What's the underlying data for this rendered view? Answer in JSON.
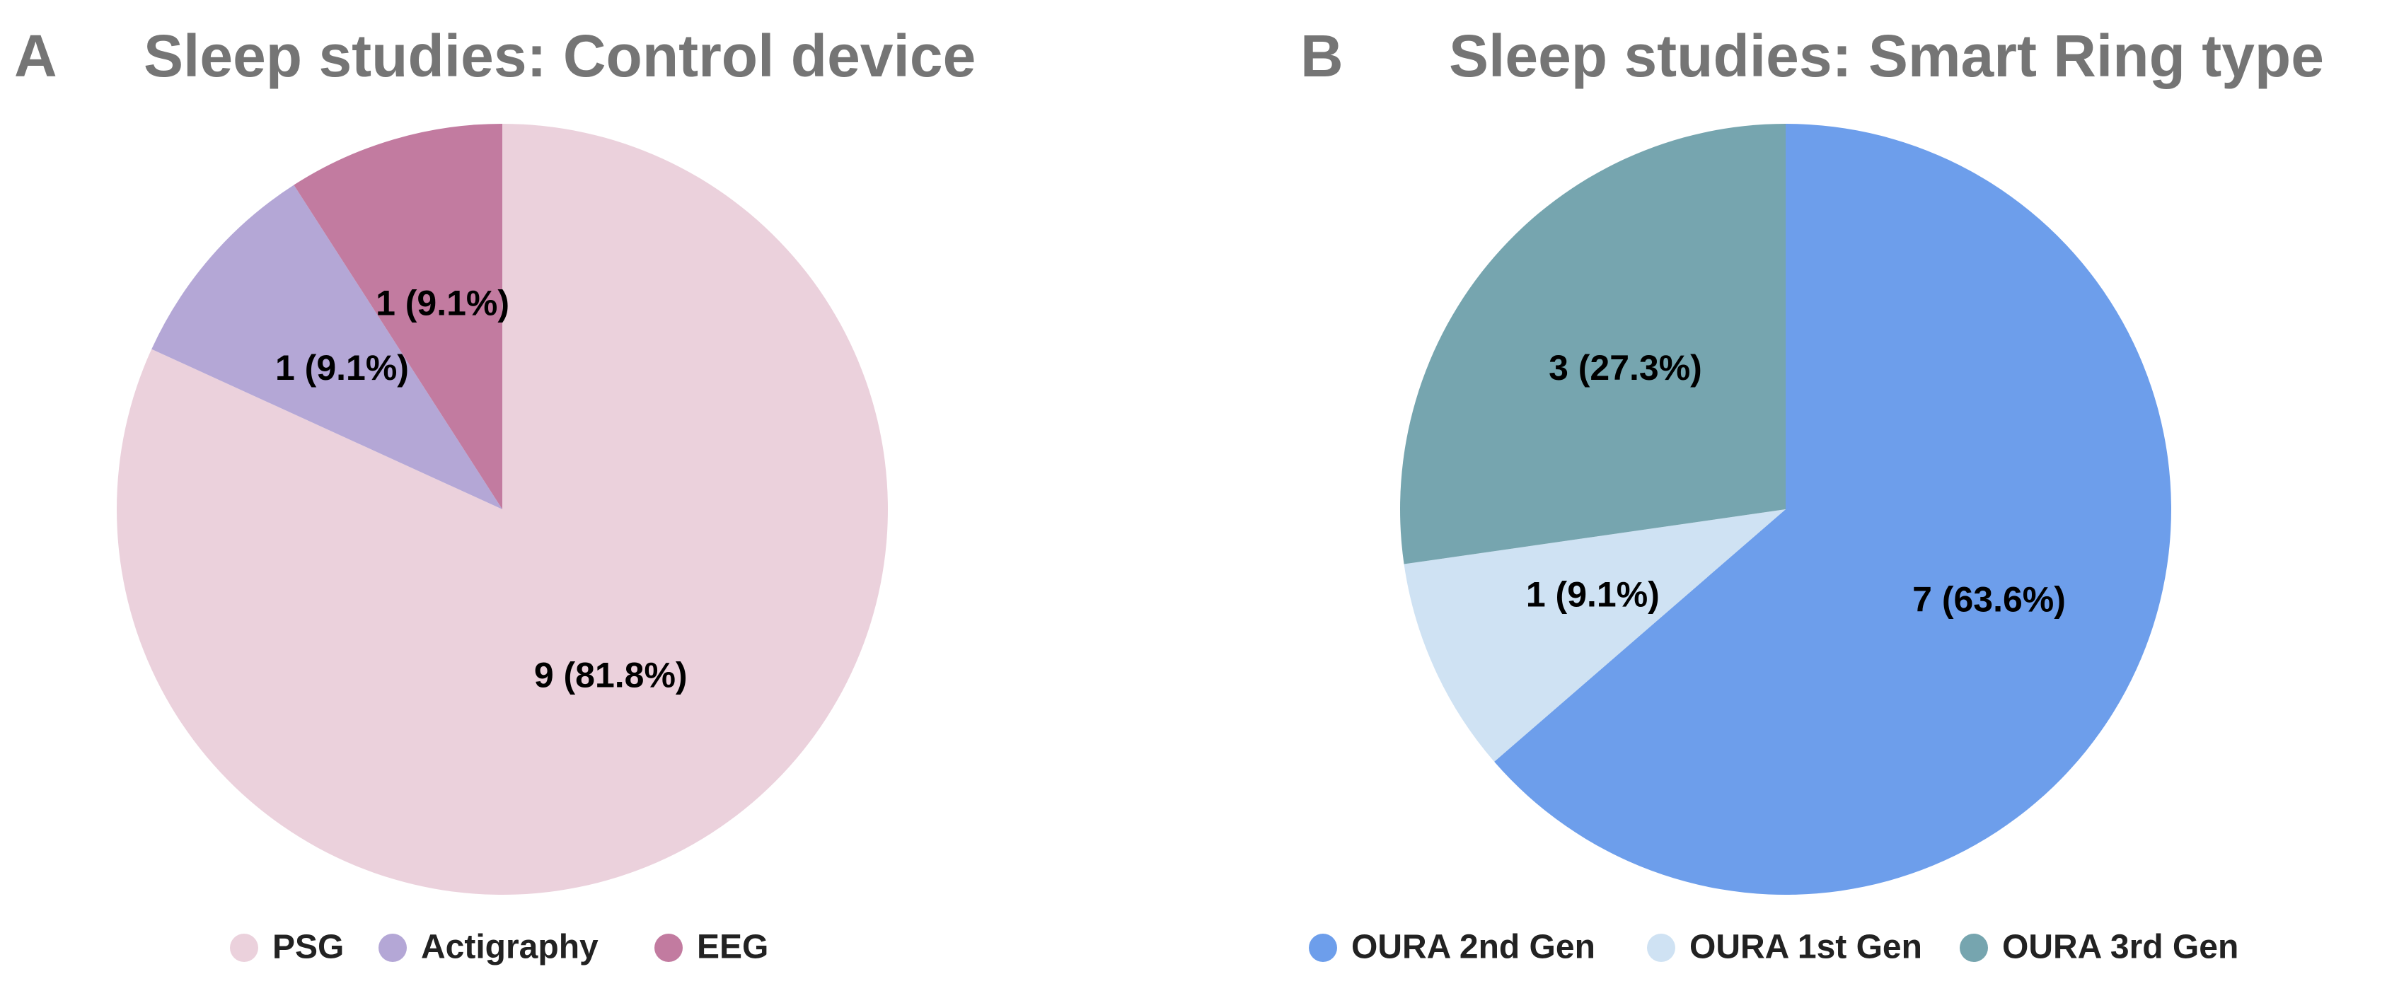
{
  "chart_data": [
    {
      "type": "pie",
      "panel_letter": "A",
      "title": "Sleep studies: Control device",
      "categories": [
        "PSG",
        "Actigraphy",
        "EEG"
      ],
      "values": [
        9,
        1,
        1
      ],
      "labels": [
        "9 (81.8%)",
        "1 (9.1%)",
        "1 (9.1%)"
      ],
      "colors": [
        "#ebd1dc",
        "#b4a7d6",
        "#c27ba0"
      ],
      "legend": [
        "PSG",
        "Actigraphy",
        "EEG"
      ],
      "legend_position": "bottom",
      "start_angle": "12 o'clock",
      "direction": "clockwise"
    },
    {
      "type": "pie",
      "panel_letter": "B",
      "title": "Sleep studies: Smart Ring type",
      "categories": [
        "OURA 2nd Gen",
        "OURA 1st Gen",
        "OURA 3rd Gen"
      ],
      "values": [
        7,
        1,
        3
      ],
      "labels": [
        "7 (63.6%)",
        "1 (9.1%)",
        "3 (27.3%)"
      ],
      "colors": [
        "#6d9eeb",
        "#cfe2f3",
        "#76a5af"
      ],
      "legend": [
        "OURA 2nd Gen",
        "OURA 1st Gen",
        "OURA 3rd Gen"
      ],
      "legend_position": "bottom",
      "start_angle": "12 o'clock",
      "direction": "clockwise"
    }
  ]
}
